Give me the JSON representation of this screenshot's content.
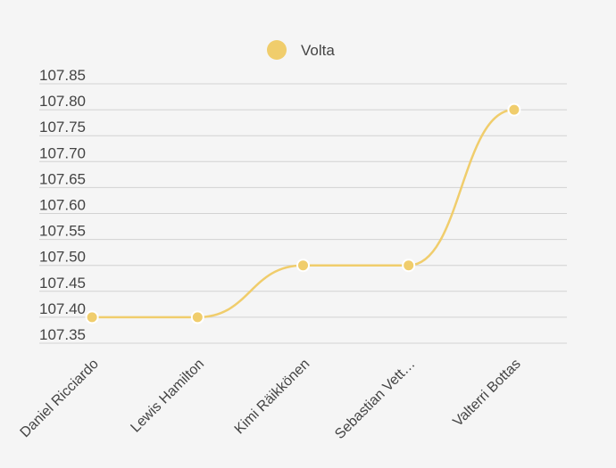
{
  "chart_data": {
    "type": "line",
    "categories": [
      "Daniel Ricciardo",
      "Lewis Hamilton",
      "Kimi Räikkönen",
      "Sebastian Vett…",
      "Valterri Bottas"
    ],
    "series": [
      {
        "name": "Volta",
        "values": [
          107.4,
          107.4,
          107.5,
          107.5,
          107.8
        ]
      }
    ],
    "yticks": [
      "107.85",
      "107.80",
      "107.75",
      "107.70",
      "107.65",
      "107.60",
      "107.55",
      "107.50",
      "107.45",
      "107.40",
      "107.35"
    ],
    "ylim": [
      107.35,
      107.85
    ],
    "grid": true,
    "legend_position": "top",
    "curve": "smooth",
    "colors": {
      "series": "#f0cd6c",
      "marker_stroke": "#ffffff",
      "grid": "#d2d2d2",
      "text": "#444444"
    }
  }
}
